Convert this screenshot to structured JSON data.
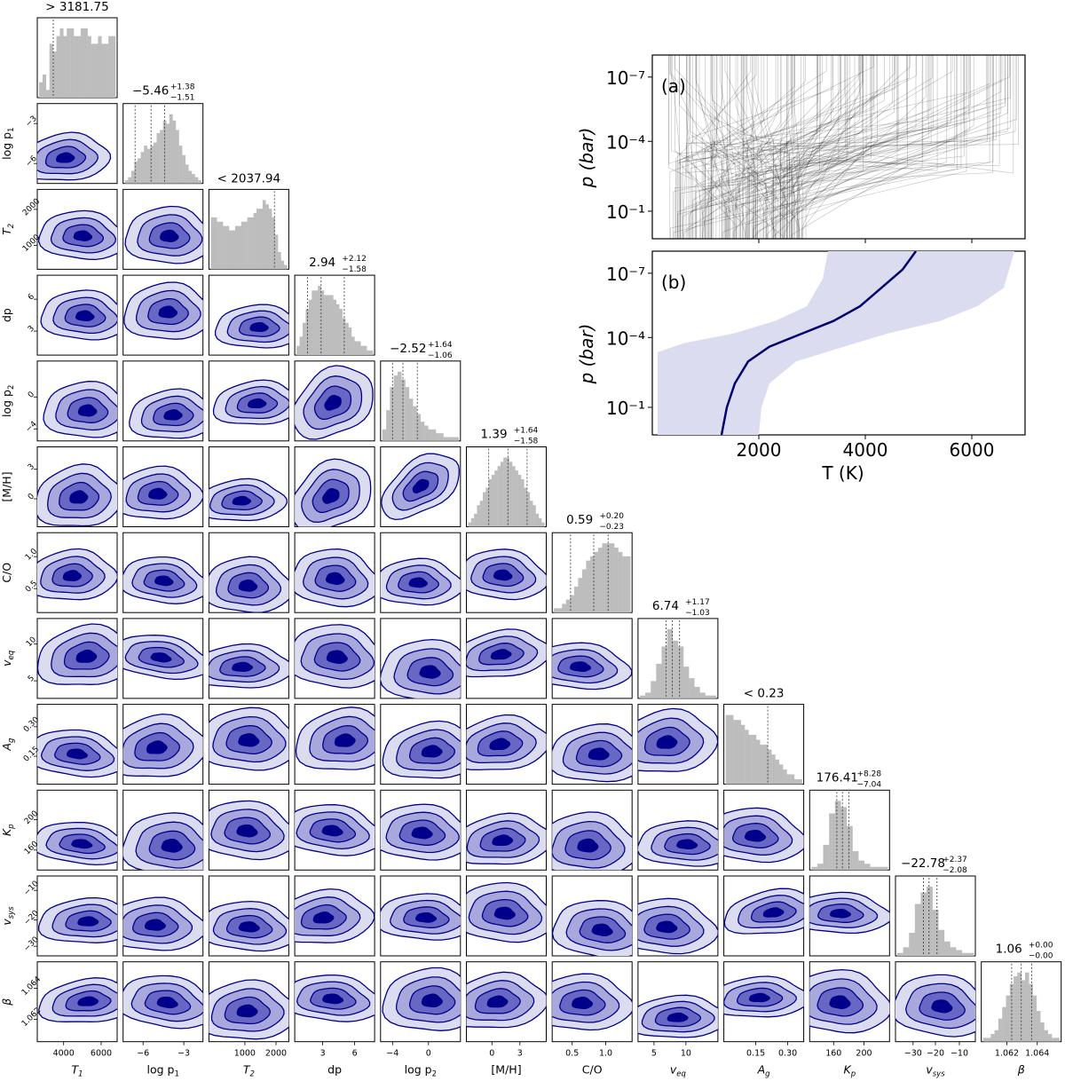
{
  "chart_data": {
    "type": "corner",
    "params": [
      {
        "key": "T1",
        "label": "T",
        "sub": "1",
        "ticks": [
          {
            "v": 0.33,
            "t": "4000"
          },
          {
            "v": 0.8,
            "t": "6000"
          }
        ],
        "title": "> 3181.75",
        "qlines": [
          0.2
        ],
        "hist": [
          2,
          3,
          1,
          7,
          6,
          8,
          9,
          8,
          9,
          9,
          8,
          8,
          9,
          9,
          8,
          7,
          7,
          8,
          7,
          7,
          8,
          8
        ]
      },
      {
        "key": "logp1",
        "label": "log p",
        "sub": "1",
        "ticks": [
          {
            "v": 0.25,
            "t": "−6"
          },
          {
            "v": 0.76,
            "t": "−3"
          }
        ],
        "title": "−5.46",
        "sup": "+1.38",
        "low": "−1.51",
        "qlines": [
          0.15,
          0.35,
          0.52
        ],
        "hist": [
          1,
          2,
          4,
          7,
          8,
          10,
          12,
          11,
          12,
          13,
          16,
          17,
          20,
          19,
          22,
          20,
          17,
          12,
          9,
          6,
          4,
          3,
          2,
          1
        ]
      },
      {
        "key": "T2",
        "label": "T",
        "sub": "2",
        "ticks": [
          {
            "v": 0.45,
            "t": "1000"
          },
          {
            "v": 0.84,
            "t": "2000"
          }
        ],
        "title": "< 2037.94",
        "qlines": [
          0.82
        ],
        "hist": [
          12,
          12,
          11,
          11,
          10,
          10,
          9,
          9,
          10,
          10,
          11,
          11,
          12,
          12,
          13,
          14,
          14,
          16,
          15,
          14,
          12,
          8,
          4,
          2,
          1
        ]
      },
      {
        "key": "dp",
        "label": "dp",
        "sub": "",
        "ticks": [
          {
            "v": 0.35,
            "t": "3"
          },
          {
            "v": 0.75,
            "t": "6"
          }
        ],
        "title": "2.94",
        "sup": "+2.12",
        "low": "−1.58",
        "qlines": [
          0.16,
          0.33,
          0.62
        ],
        "hist": [
          2,
          4,
          7,
          10,
          12,
          14,
          14,
          15,
          14,
          13,
          13,
          13,
          12,
          11,
          10,
          8,
          7,
          6,
          4,
          3,
          3,
          2,
          2,
          1,
          1
        ]
      },
      {
        "key": "logp2",
        "label": "log p",
        "sub": "2",
        "ticks": [
          {
            "v": 0.15,
            "t": "−4"
          },
          {
            "v": 0.6,
            "t": "0"
          }
        ],
        "title": "−2.52",
        "sup": "+1.64",
        "low": "−1.06",
        "qlines": [
          0.15,
          0.28,
          0.46
        ],
        "hist": [
          3,
          8,
          14,
          17,
          18,
          16,
          14,
          11,
          9,
          7,
          5,
          4,
          3,
          3,
          2,
          2,
          1,
          1,
          1,
          1
        ]
      },
      {
        "key": "MH",
        "label": "[M/H]",
        "sub": "",
        "ticks": [
          {
            "v": 0.32,
            "t": "0"
          },
          {
            "v": 0.67,
            "t": "3"
          }
        ],
        "title": "1.39",
        "sup": "+1.64",
        "low": "−1.58",
        "qlines": [
          0.28,
          0.52,
          0.76
        ],
        "hist": [
          1,
          2,
          3,
          5,
          6,
          8,
          9,
          11,
          12,
          13,
          14,
          15,
          16,
          16,
          15,
          14,
          13,
          12,
          11,
          9,
          8,
          6,
          5,
          3,
          2,
          1
        ]
      },
      {
        "key": "CO",
        "label": "C/O",
        "sub": "",
        "ticks": [
          {
            "v": 0.25,
            "t": "0.5"
          },
          {
            "v": 0.67,
            "t": "1.0"
          }
        ],
        "title": "0.59",
        "sup": "+0.20",
        "low": "−0.23",
        "qlines": [
          0.23,
          0.52,
          0.7
        ],
        "hist": [
          1,
          1,
          2,
          3,
          4,
          6,
          8,
          10,
          12,
          13,
          14,
          15,
          16,
          16,
          16,
          15,
          14,
          13,
          13
        ]
      },
      {
        "key": "veq",
        "label": "v",
        "sub": "eq",
        "ticks": [
          {
            "v": 0.2,
            "t": "5"
          },
          {
            "v": 0.6,
            "t": "10"
          }
        ],
        "title": "6.74",
        "sup": "+1.17",
        "low": "−1.03",
        "qlines": [
          0.35,
          0.43,
          0.52
        ],
        "hist": [
          1,
          2,
          6,
          12,
          18,
          24,
          20,
          18,
          11,
          7,
          4,
          2,
          1,
          1
        ]
      },
      {
        "key": "Ag",
        "label": "A",
        "sub": "g",
        "ticks": [
          {
            "v": 0.4,
            "t": "0.15"
          },
          {
            "v": 0.8,
            "t": "0.30"
          }
        ],
        "title": "< 0.23",
        "qlines": [
          0.55
        ],
        "hist": [
          14,
          14,
          13,
          13,
          12,
          11,
          10,
          10,
          9,
          8,
          8,
          7,
          6,
          5,
          4,
          3,
          2,
          2,
          1,
          1
        ]
      },
      {
        "key": "Kp",
        "label": "K",
        "sub": "p",
        "ticks": [
          {
            "v": 0.3,
            "t": "160"
          },
          {
            "v": 0.68,
            "t": "200"
          }
        ],
        "title": "176.41",
        "sup": "+8.28",
        "low": "−7.04",
        "qlines": [
          0.34,
          0.41,
          0.49
        ],
        "hist": [
          1,
          2,
          8,
          18,
          22,
          20,
          14,
          6,
          3,
          2,
          1,
          1,
          1
        ]
      },
      {
        "key": "vsys",
        "label": "v",
        "sub": "sys",
        "ticks": [
          {
            "v": 0.22,
            "t": "−30"
          },
          {
            "v": 0.5,
            "t": "−20"
          },
          {
            "v": 0.8,
            "t": "−10"
          }
        ],
        "title": "−22.78",
        "sup": "+2.37",
        "low": "−2.08",
        "qlines": [
          0.35,
          0.42,
          0.52
        ],
        "hist": [
          1,
          3,
          8,
          18,
          22,
          24,
          16,
          9,
          5,
          3,
          2,
          1,
          1
        ]
      },
      {
        "key": "beta",
        "label": "β",
        "sub": "",
        "ticks": [
          {
            "v": 0.32,
            "t": "1.062"
          },
          {
            "v": 0.7,
            "t": "1.064"
          }
        ],
        "title": "1.06",
        "sup": "+0.00",
        "low": "−0.00",
        "qlines": [
          0.38,
          0.5,
          0.63
        ],
        "hist": [
          1,
          1,
          2,
          3,
          6,
          9,
          12,
          15,
          17,
          18,
          16,
          18,
          15,
          12,
          8,
          5,
          3,
          2,
          1,
          1
        ]
      }
    ],
    "ylabel_ticks": {
      "logp1": [
        {
          "v": 0.25,
          "t": "−6"
        },
        {
          "v": 0.75,
          "t": "−3"
        }
      ],
      "T2": [
        {
          "v": 0.3,
          "t": "1000"
        },
        {
          "v": 0.75,
          "t": "2000"
        }
      ],
      "dp": [
        {
          "v": 0.3,
          "t": "3"
        },
        {
          "v": 0.7,
          "t": "6"
        }
      ],
      "logp2": [
        {
          "v": 0.15,
          "t": "−4"
        },
        {
          "v": 0.55,
          "t": "0"
        }
      ],
      "MH": [
        {
          "v": 0.35,
          "t": "0"
        },
        {
          "v": 0.72,
          "t": "3"
        }
      ],
      "CO": [
        {
          "v": 0.3,
          "t": "0.5"
        },
        {
          "v": 0.7,
          "t": "1.0"
        }
      ],
      "veq": [
        {
          "v": 0.22,
          "t": "5"
        },
        {
          "v": 0.68,
          "t": "10"
        }
      ],
      "Ag": [
        {
          "v": 0.35,
          "t": "0.15"
        },
        {
          "v": 0.72,
          "t": "0.30"
        }
      ],
      "Kp": [
        {
          "v": 0.25,
          "t": "160"
        },
        {
          "v": 0.63,
          "t": "200"
        }
      ],
      "vsys": [
        {
          "v": 0.12,
          "t": "−30"
        },
        {
          "v": 0.45,
          "t": "−20"
        },
        {
          "v": 0.82,
          "t": "−10"
        }
      ],
      "beta": [
        {
          "v": 0.28,
          "t": "1.062"
        },
        {
          "v": 0.67,
          "t": "1.064"
        }
      ]
    },
    "profile_panels": {
      "ylabel": "p (bar)",
      "xlabel": "T (K)",
      "yticks": [
        "10⁻⁷",
        "10⁻⁴",
        "10⁻¹"
      ],
      "xticks": [
        "2000",
        "4000",
        "6000"
      ],
      "xlim": [
        0,
        7000
      ],
      "panel_a_label": "(a)",
      "panel_b_label": "(b)",
      "median_profile": [
        [
          1300,
          1.0
        ],
        [
          1400,
          0.85
        ],
        [
          1550,
          0.72
        ],
        [
          1800,
          0.6
        ],
        [
          2200,
          0.52
        ],
        [
          2800,
          0.45
        ],
        [
          3400,
          0.38
        ],
        [
          3900,
          0.3
        ],
        [
          4300,
          0.2
        ],
        [
          4700,
          0.1
        ],
        [
          4950,
          0.0
        ]
      ],
      "band_low": [
        [
          100,
          0.55
        ],
        [
          600,
          0.5
        ],
        [
          1500,
          0.45
        ],
        [
          2300,
          0.38
        ],
        [
          2900,
          0.3
        ],
        [
          3200,
          0.15
        ],
        [
          3300,
          0.0
        ]
      ],
      "band_high": [
        [
          2000,
          1.0
        ],
        [
          2050,
          0.85
        ],
        [
          2200,
          0.72
        ],
        [
          2700,
          0.6
        ],
        [
          3600,
          0.52
        ],
        [
          4400,
          0.45
        ],
        [
          5400,
          0.38
        ],
        [
          6100,
          0.3
        ],
        [
          6600,
          0.2
        ],
        [
          6800,
          0.0
        ]
      ]
    },
    "colors": {
      "contour_dark": "#00008b",
      "contour_line": "#00008b",
      "hist": "#bdbdbd",
      "band": "#dcdcf0",
      "median": "#00006e"
    }
  }
}
